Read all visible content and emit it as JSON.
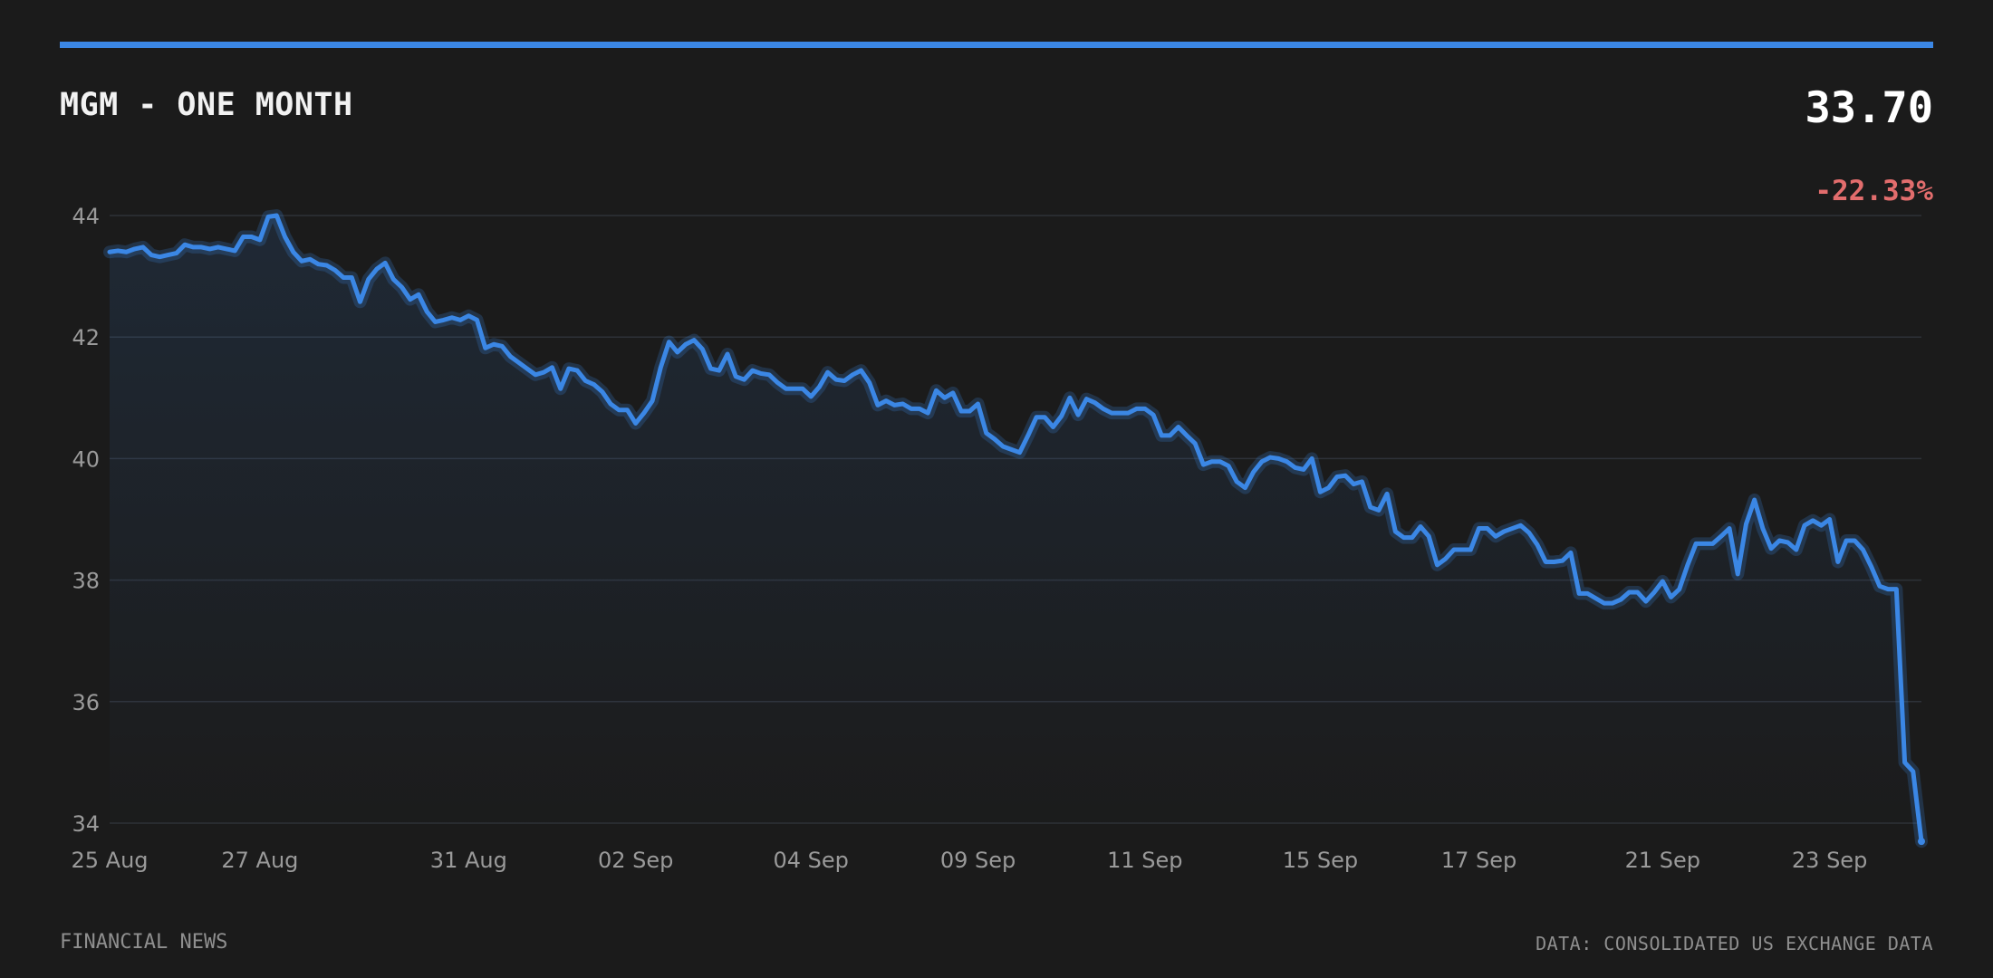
{
  "header": {
    "title": "MGM - ONE MONTH",
    "price": "33.70",
    "change": "-22.33%",
    "accent_color": "#3b87e5",
    "negative_color": "#e26d6d"
  },
  "footer": {
    "source_left": "FINANCIAL NEWS",
    "source_right": "DATA: CONSOLIDATED US EXCHANGE DATA"
  },
  "chart_data": {
    "type": "area",
    "title": "MGM - ONE MONTH",
    "xlabel": "",
    "ylabel": "",
    "ylim": [
      34,
      44
    ],
    "yticks": [
      44,
      42,
      40,
      38,
      36,
      34
    ],
    "xtick_labels": [
      "25 Aug",
      "27 Aug",
      "31 Aug",
      "02 Sep",
      "04 Sep",
      "09 Sep",
      "11 Sep",
      "15 Sep",
      "17 Sep",
      "21 Sep",
      "23 Sep"
    ],
    "xtick_indices": [
      0,
      18,
      43,
      63,
      84,
      104,
      124,
      145,
      164,
      186,
      206
    ],
    "grid": true,
    "series": [
      {
        "color": "#3b87e5",
        "values": [
          43.4,
          43.42,
          43.4,
          43.45,
          43.48,
          43.35,
          43.32,
          43.35,
          43.38,
          43.52,
          43.48,
          43.48,
          43.45,
          43.48,
          43.45,
          43.42,
          43.65,
          43.65,
          43.6,
          43.98,
          44.0,
          43.65,
          43.4,
          43.25,
          43.28,
          43.2,
          43.18,
          43.1,
          42.98,
          42.98,
          42.58,
          42.95,
          43.12,
          43.22,
          42.95,
          42.82,
          42.62,
          42.7,
          42.42,
          42.25,
          42.28,
          42.32,
          42.28,
          42.35,
          42.28,
          41.82,
          41.88,
          41.85,
          41.68,
          41.58,
          41.48,
          41.38,
          41.42,
          41.5,
          41.15,
          41.48,
          41.45,
          41.28,
          41.22,
          41.1,
          40.9,
          40.8,
          40.8,
          40.58,
          40.75,
          40.95,
          41.5,
          41.92,
          41.75,
          41.88,
          41.95,
          41.8,
          41.48,
          41.45,
          41.72,
          41.35,
          41.3,
          41.45,
          41.4,
          41.38,
          41.25,
          41.15,
          41.15,
          41.15,
          41.02,
          41.18,
          41.42,
          41.3,
          41.28,
          41.38,
          41.45,
          41.25,
          40.88,
          40.95,
          40.88,
          40.9,
          40.82,
          40.82,
          40.75,
          41.12,
          41.0,
          41.08,
          40.78,
          40.78,
          40.9,
          40.42,
          40.32,
          40.2,
          40.15,
          40.1,
          40.38,
          40.68,
          40.68,
          40.52,
          40.7,
          41.0,
          40.72,
          40.98,
          40.92,
          40.82,
          40.75,
          40.75,
          40.75,
          40.82,
          40.82,
          40.72,
          40.38,
          40.38,
          40.52,
          40.38,
          40.25,
          39.9,
          39.95,
          39.95,
          39.88,
          39.62,
          39.52,
          39.78,
          39.95,
          40.02,
          40.0,
          39.95,
          39.85,
          39.82,
          40.0,
          39.45,
          39.52,
          39.7,
          39.72,
          39.58,
          39.62,
          39.2,
          39.15,
          39.42,
          38.8,
          38.7,
          38.7,
          38.88,
          38.72,
          38.25,
          38.35,
          38.5,
          38.5,
          38.5,
          38.85,
          38.85,
          38.72,
          38.8,
          38.85,
          38.9,
          38.78,
          38.58,
          38.3,
          38.3,
          38.32,
          38.45,
          37.78,
          37.78,
          37.7,
          37.62,
          37.62,
          37.68,
          37.8,
          37.8,
          37.65,
          37.8,
          37.98,
          37.72,
          37.85,
          38.25,
          38.6,
          38.6,
          38.6,
          38.72,
          38.85,
          38.1,
          38.92,
          39.32,
          38.85,
          38.52,
          38.65,
          38.62,
          38.5,
          38.9,
          38.98,
          38.9,
          39.0,
          38.3,
          38.65,
          38.65,
          38.5,
          38.22,
          37.9,
          37.85,
          37.85,
          35.0,
          34.85,
          33.7
        ]
      }
    ]
  }
}
